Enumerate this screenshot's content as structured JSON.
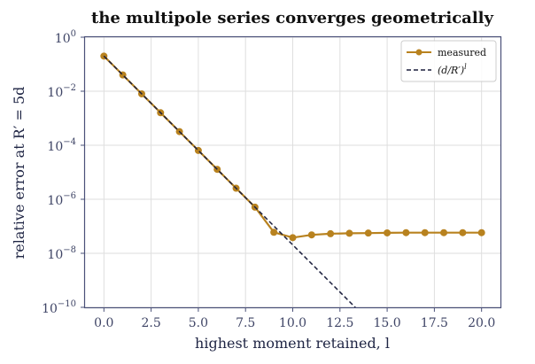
{
  "chart_data": {
    "type": "line",
    "title": "the multipole series converges geometrically",
    "xlabel": "highest moment retained, l",
    "ylabel": "relative error at R′ = 5d",
    "xlim": [
      -1.0,
      21.0
    ],
    "ylim": [
      1e-10,
      1.0
    ],
    "yscale": "log",
    "grid": true,
    "legend_placement": "top-right",
    "x_ticks": [
      0.0,
      2.5,
      5.0,
      7.5,
      10.0,
      12.5,
      15.0,
      17.5,
      20.0
    ],
    "x_tick_labels": [
      "0.0",
      "2.5",
      "5.0",
      "7.5",
      "10.0",
      "12.5",
      "15.0",
      "17.5",
      "20.0"
    ],
    "y_ticks": [
      1e-10,
      1e-08,
      1e-06,
      0.0001,
      0.01,
      1.0
    ],
    "y_tick_labels": [
      {
        "base": "10",
        "exp": "−10"
      },
      {
        "base": "10",
        "exp": "−8"
      },
      {
        "base": "10",
        "exp": "−6"
      },
      {
        "base": "10",
        "exp": "−4"
      },
      {
        "base": "10",
        "exp": "−2"
      },
      {
        "base": "10",
        "exp": "0"
      }
    ],
    "series": [
      {
        "name": "measured",
        "style": "solid-with-markers",
        "color": "#b8821f",
        "x": [
          0,
          1,
          2,
          3,
          4,
          5,
          6,
          7,
          8,
          9,
          10,
          11,
          12,
          13,
          14,
          15,
          16,
          17,
          18,
          19,
          20
        ],
        "y": [
          0.2,
          0.04,
          0.008,
          0.0016,
          0.00032,
          6.4e-05,
          1.28e-05,
          2.56e-06,
          5.1e-07,
          6e-08,
          3.8e-08,
          4.8e-08,
          5.3e-08,
          5.5e-08,
          5.6e-08,
          5.7e-08,
          5.8e-08,
          5.8e-08,
          5.8e-08,
          5.8e-08,
          5.8e-08
        ]
      },
      {
        "name": "(d/R′)^l",
        "style": "dashed",
        "color": "#1b1f3d",
        "x": [
          0,
          1,
          2,
          3,
          4,
          5,
          6,
          7,
          8,
          9,
          10,
          11,
          12,
          13,
          14
        ],
        "y": [
          0.2,
          0.04,
          0.008,
          0.0016,
          0.00032,
          6.4e-05,
          1.28e-05,
          2.56e-06,
          5.12e-07,
          1.024e-07,
          2.048e-08,
          4.096e-09,
          8.192e-10,
          1.6384e-10,
          3.2768e-11
        ]
      }
    ]
  },
  "legend": {
    "measured_label": "measured",
    "model_base": "(d/R′)",
    "model_exp": "l"
  }
}
